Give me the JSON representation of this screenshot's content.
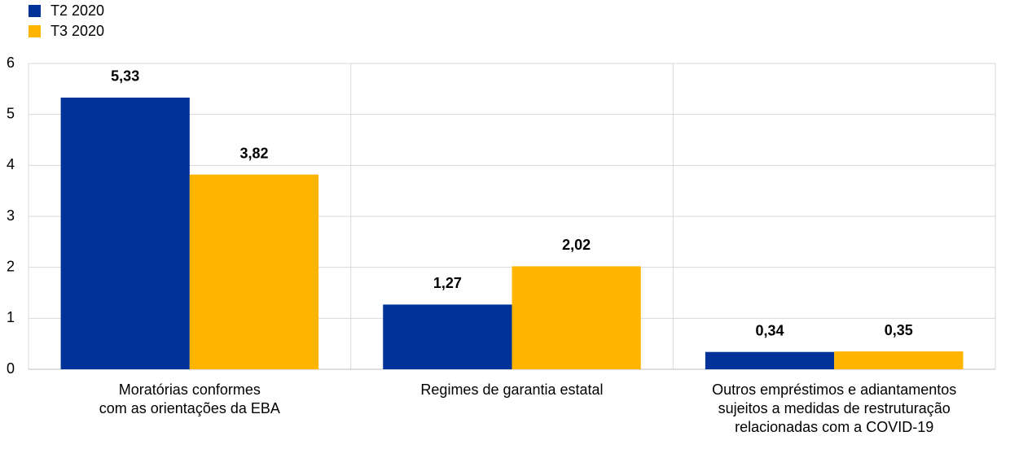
{
  "chart_data": {
    "type": "bar",
    "categories": [
      [
        "Moratórias conformes",
        "com as orientações da EBA"
      ],
      [
        "Regimes de garantia estatal"
      ],
      [
        "Outros empréstimos e adiantamentos",
        "sujeitos a medidas de restruturação",
        "relacionadas com a COVID-19"
      ]
    ],
    "series": [
      {
        "name": "T2 2020",
        "color": "#003299",
        "values": [
          5.33,
          1.27,
          0.34
        ],
        "value_labels": [
          "5,33",
          "1,27",
          "0,34"
        ]
      },
      {
        "name": "T3 2020",
        "color": "#ffb400",
        "values": [
          3.82,
          2.02,
          0.35
        ],
        "value_labels": [
          "3,82",
          "2,02",
          "0,35"
        ]
      }
    ],
    "ylim": [
      0,
      6
    ],
    "yticks": [
      0,
      1,
      2,
      3,
      4,
      5,
      6
    ],
    "grid": true
  }
}
